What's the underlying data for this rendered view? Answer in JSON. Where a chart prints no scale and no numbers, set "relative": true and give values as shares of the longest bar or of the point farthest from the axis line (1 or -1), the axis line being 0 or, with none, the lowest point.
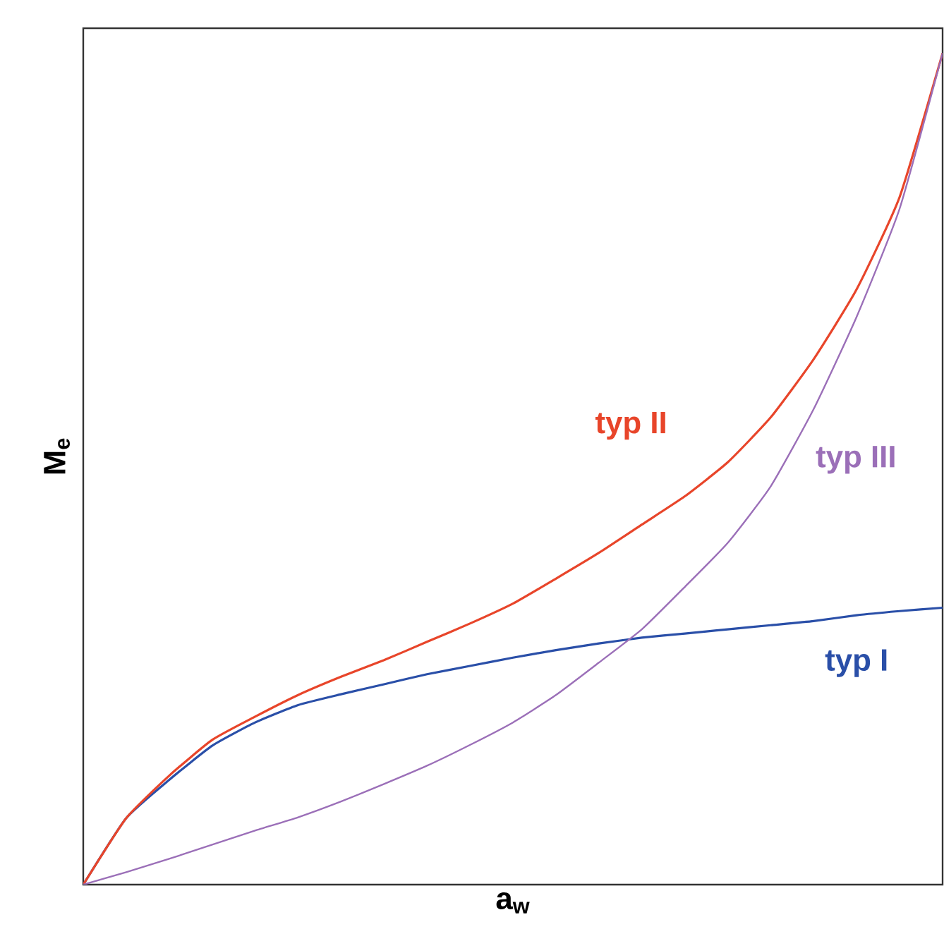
{
  "chart_data": {
    "type": "line",
    "relative": true,
    "xlabel": "a$_{w}$",
    "ylabel": "M$_{e}$",
    "categories": [
      null,
      null,
      null,
      null,
      null,
      null,
      null,
      null,
      null,
      null,
      null,
      null,
      null,
      null,
      null,
      null,
      null,
      null,
      null,
      null,
      null
    ],
    "series": [
      {
        "name": "typ I",
        "color": "#2a4fa8",
        "values": [
          0,
          0.08,
          0.126,
          0.167,
          0.195,
          0.216,
          0.229,
          0.241,
          0.253,
          0.263,
          0.273,
          0.282,
          0.29,
          0.297,
          0.302,
          0.307,
          0.312,
          0.317,
          0.324,
          0.329,
          0.333
        ]
      },
      {
        "name": "typ II",
        "color": "#e8452a",
        "values": [
          0,
          0.08,
          0.131,
          0.174,
          0.202,
          0.228,
          0.25,
          0.27,
          0.292,
          0.314,
          0.338,
          0.368,
          0.399,
          0.433,
          0.467,
          0.508,
          0.562,
          0.632,
          0.716,
          0.827,
          1
        ]
      },
      {
        "name": "typ III",
        "color": "#9b6fb8",
        "values": [
          0,
          0.015,
          0.031,
          0.048,
          0.065,
          0.081,
          0.1,
          0.121,
          0.143,
          0.168,
          0.195,
          0.228,
          0.267,
          0.307,
          0.358,
          0.411,
          0.479,
          0.572,
          0.683,
          0.813,
          1
        ]
      }
    ]
  }
}
